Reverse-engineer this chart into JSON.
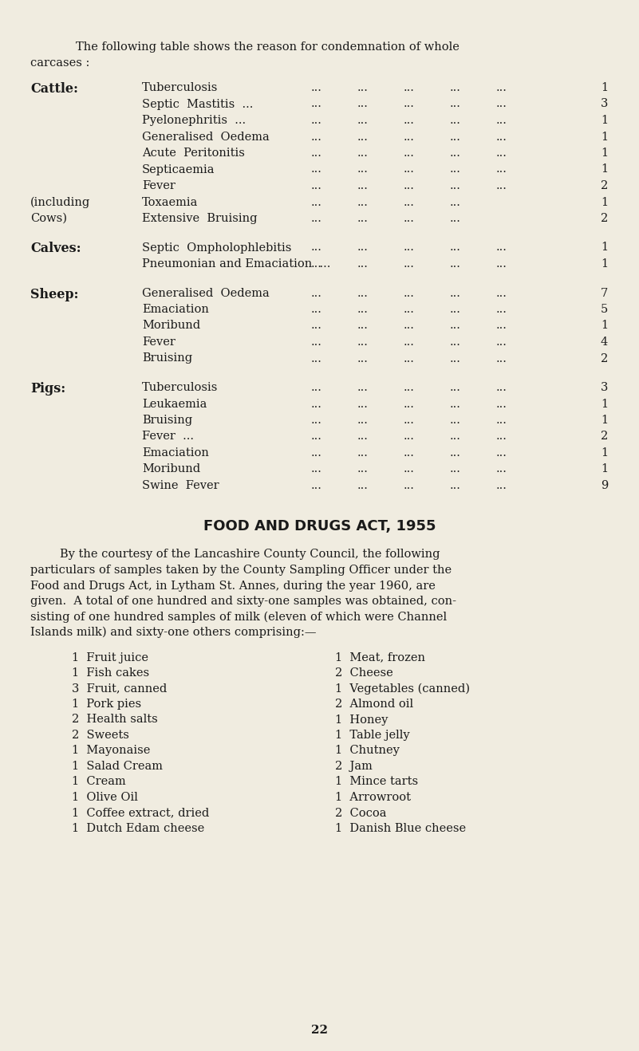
{
  "bg_color": "#f0ece0",
  "text_color": "#1a1a1a",
  "page_number": "22",
  "sections": [
    {
      "header": "Cattle:",
      "items": [
        {
          "condition": "Tuberculosis",
          "count": "1"
        },
        {
          "condition": "Septic  Mastitis  ...",
          "count": "3"
        },
        {
          "condition": "Pyelonephritis  ...",
          "count": "1"
        },
        {
          "condition": "Generalised  Oedema",
          "count": "1"
        },
        {
          "condition": "Acute  Peritonitis",
          "count": "1"
        },
        {
          "condition": "Septicaemia",
          "count": "1"
        },
        {
          "condition": "Fever",
          "count": "2"
        }
      ],
      "sub_items": [
        {
          "left_note": "(including",
          "condition": "Toxaemia",
          "count": "1"
        },
        {
          "left_note": "Cows)",
          "condition": "Extensive  Bruising",
          "count": "2"
        }
      ]
    },
    {
      "header": "Calves:",
      "items": [
        {
          "condition": "Septic  Ompholophlebitis",
          "count": "1"
        },
        {
          "condition": "Pneumonian and Emaciation  ...",
          "count": "1"
        }
      ],
      "sub_items": []
    },
    {
      "header": "Sheep:",
      "items": [
        {
          "condition": "Generalised  Oedema",
          "count": "7"
        },
        {
          "condition": "Emaciation",
          "count": "5"
        },
        {
          "condition": "Moribund",
          "count": "1"
        },
        {
          "condition": "Fever",
          "count": "4"
        },
        {
          "condition": "Bruising",
          "count": "2"
        }
      ],
      "sub_items": []
    },
    {
      "header": "Pigs:",
      "items": [
        {
          "condition": "Tuberculosis",
          "count": "3"
        },
        {
          "condition": "Leukaemia",
          "count": "1"
        },
        {
          "condition": "Bruising",
          "count": "1"
        },
        {
          "condition": "Fever  ...",
          "count": "2"
        },
        {
          "condition": "Emaciation",
          "count": "1"
        },
        {
          "condition": "Moribund",
          "count": "1"
        },
        {
          "condition": "Swine  Fever",
          "count": "9"
        }
      ],
      "sub_items": []
    }
  ],
  "food_drugs_title": "FOOD AND DRUGS ACT, 1955",
  "para_lines": [
    "        By the courtesy of the Lancashire County Council, the following",
    "particulars of samples taken by the County Sampling Officer under the",
    "Food and Drugs Act, in Lytham St. Annes, during the year 1960, are",
    "given.  A total of one hundred and sixty-one samples was obtained, con-",
    "sisting of one hundred samples of milk (eleven of which were Channel",
    "Islands milk) and sixty-one others comprising:—"
  ],
  "list_left": [
    "1  Fruit juice",
    "1  Fish cakes",
    "3  Fruit, canned",
    "1  Pork pies",
    "2  Health salts",
    "2  Sweets",
    "1  Mayonaise",
    "1  Salad Cream",
    "1  Cream",
    "1  Olive Oil",
    "1  Coffee extract, dried",
    "1  Dutch Edam cheese"
  ],
  "list_right": [
    "1  Meat, frozen",
    "2  Cheese",
    "1  Vegetables (canned)",
    "2  Almond oil",
    "1  Honey",
    "1  Table jelly",
    "1  Chutney",
    "2  Jam",
    "1  Mince tarts",
    "1  Arrowroot",
    "2  Cocoa",
    "1  Danish Blue cheese"
  ]
}
